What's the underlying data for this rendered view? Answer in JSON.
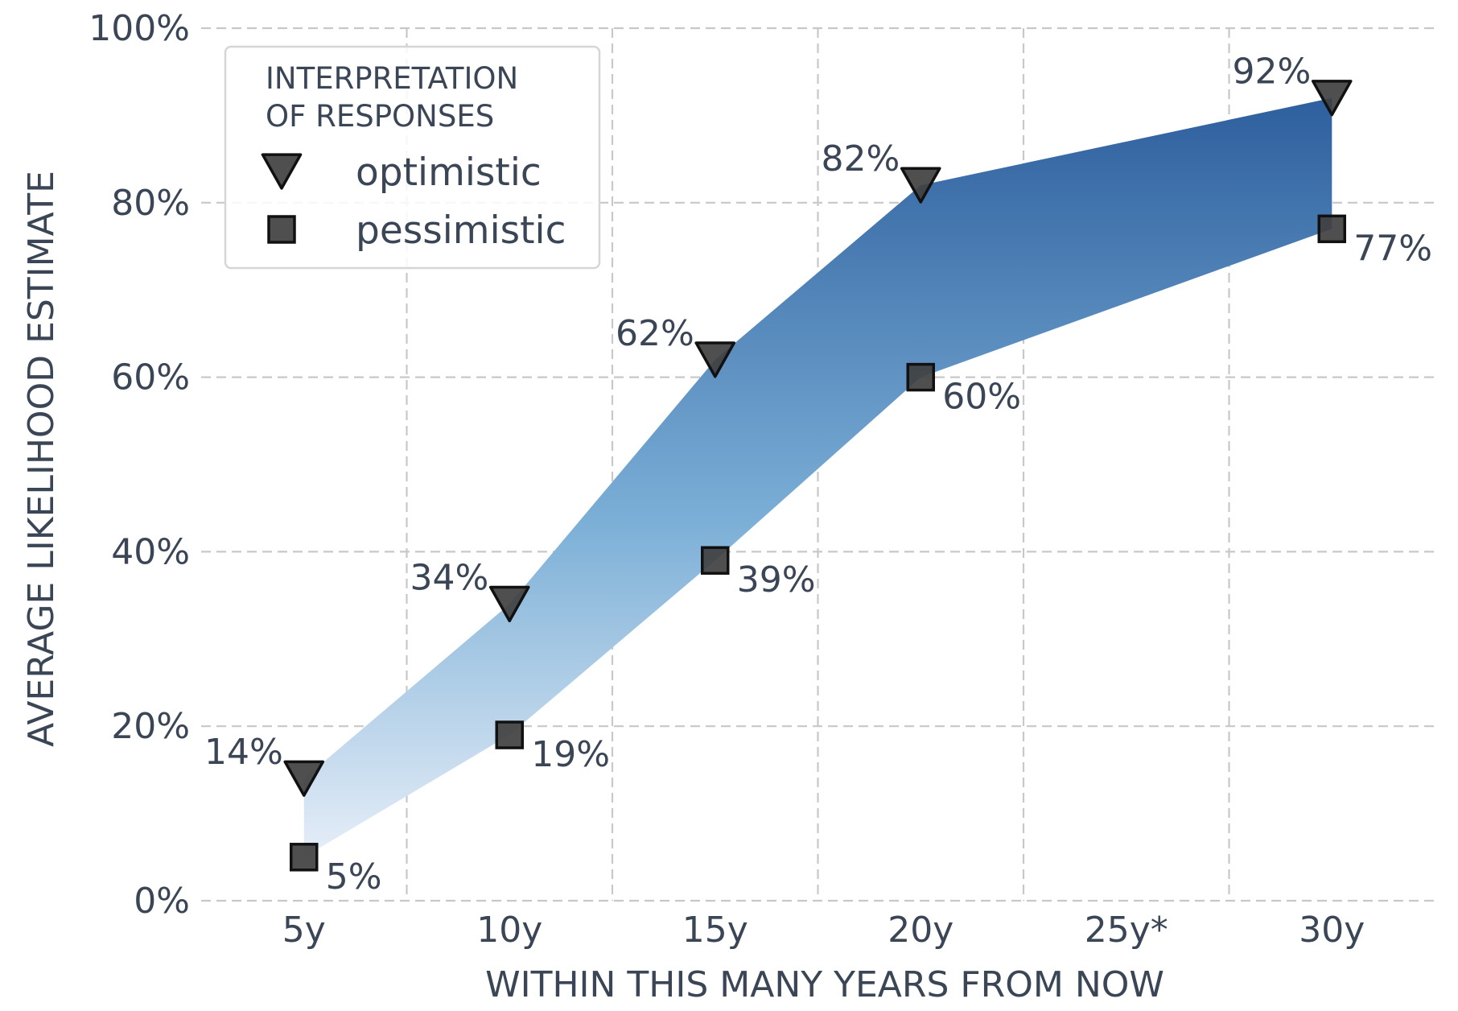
{
  "chart_data": {
    "type": "area",
    "xlabel": "WITHIN THIS MANY YEARS FROM NOW",
    "ylabel": "AVERAGE LIKELIHOOD ESTIMATE",
    "categories": [
      "5y",
      "10y",
      "15y",
      "20y",
      "25y*",
      "30y"
    ],
    "y_ticks": [
      "0%",
      "20%",
      "40%",
      "60%",
      "80%",
      "100%"
    ],
    "ylim": [
      0,
      100
    ],
    "grid": true,
    "legend": {
      "title_lines": [
        "INTERPRETATION",
        "OF RESPONSES"
      ],
      "placement": "top-left"
    },
    "series": [
      {
        "name": "optimistic",
        "marker": "triangle-down",
        "points": [
          {
            "x": "5y",
            "y": 14,
            "label": "14%"
          },
          {
            "x": "10y",
            "y": 34,
            "label": "34%"
          },
          {
            "x": "15y",
            "y": 62,
            "label": "62%"
          },
          {
            "x": "20y",
            "y": 82,
            "label": "82%"
          },
          {
            "x": "30y",
            "y": 92,
            "label": "92%"
          }
        ]
      },
      {
        "name": "pessimistic",
        "marker": "square",
        "points": [
          {
            "x": "5y",
            "y": 5,
            "label": "5%"
          },
          {
            "x": "10y",
            "y": 19,
            "label": "19%"
          },
          {
            "x": "15y",
            "y": 39,
            "label": "39%"
          },
          {
            "x": "20y",
            "y": 60,
            "label": "60%"
          },
          {
            "x": "30y",
            "y": 77,
            "label": "77%"
          }
        ]
      }
    ],
    "colors": {
      "band_top": "#2e5f9e",
      "band_mid": "#7aaed6",
      "band_bottom": "#e6eef8",
      "marker": "#404040",
      "text": "#3a4556",
      "grid": "#c8c8c8"
    }
  }
}
